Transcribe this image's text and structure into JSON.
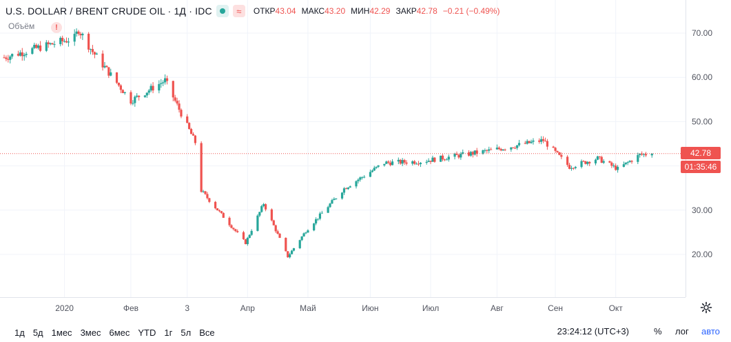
{
  "legend": {
    "symbol": "U.S. DOLLAR / BRENT CRUDE OIL · 1Д · IDC",
    "open_label": "ОТКР",
    "open": "43.04",
    "high_label": "МАКС",
    "high": "43.20",
    "low_label": "МИН",
    "low": "42.29",
    "close_label": "ЗАКР",
    "close": "42.78",
    "change": "−0.21 (−0.49%)",
    "status_icon": "dot-icon",
    "wave_icon": "≈"
  },
  "volume_label": "Объём",
  "alert_icon": "!",
  "price_tags": {
    "last": "42.78",
    "countdown": "01:35:46"
  },
  "colors": {
    "up": "#26a69a",
    "down": "#ef5350",
    "grid": "#f0f3fa",
    "axis_text": "#50535e"
  },
  "ranges": [
    "1д",
    "5д",
    "1мес",
    "3мес",
    "6мес",
    "YTD",
    "1г",
    "5л",
    "Все"
  ],
  "time_now": "23:24:12 (UTC+3)",
  "right_buttons": {
    "percent": "%",
    "log": "лог",
    "auto": "авто"
  },
  "settings_icon": "gear-icon",
  "chart_data": {
    "type": "candlestick",
    "title": "U.S. DOLLAR / BRENT CRUDE OIL · 1Д · IDC",
    "ylim": [
      10,
      76
    ],
    "y_ticks": [
      "70.00",
      "60.00",
      "50.00",
      "40.00",
      "30.00",
      "20.00"
    ],
    "y_tick_values": [
      70,
      60,
      50,
      40,
      30,
      20
    ],
    "x_ticks": [
      "2020",
      "Фев",
      "3",
      "Апр",
      "Май",
      "Июн",
      "Июл",
      "Авг",
      "Сен",
      "Окт"
    ],
    "last_price": 42.78,
    "grid": true,
    "key_points": [
      {
        "date": "2019-12-02",
        "close": 64.5
      },
      {
        "date": "2019-12-20",
        "close": 66.8
      },
      {
        "date": "2020-01-06",
        "close": 68.9
      },
      {
        "date": "2020-01-08",
        "close": 70.8
      },
      {
        "date": "2020-01-15",
        "close": 65.8
      },
      {
        "date": "2020-02-03",
        "close": 54.7
      },
      {
        "date": "2020-02-20",
        "close": 59.3
      },
      {
        "date": "2020-03-06",
        "close": 45.3
      },
      {
        "date": "2020-03-09",
        "close": 34.4
      },
      {
        "date": "2020-03-31",
        "close": 22.6
      },
      {
        "date": "2020-04-09",
        "close": 31.5
      },
      {
        "date": "2020-04-21",
        "close": 19.5
      },
      {
        "date": "2020-04-30",
        "close": 25.3
      },
      {
        "date": "2020-05-19",
        "close": 34.9
      },
      {
        "date": "2020-06-08",
        "close": 40.7
      },
      {
        "date": "2020-06-26",
        "close": 41.0
      },
      {
        "date": "2020-07-31",
        "close": 43.5
      },
      {
        "date": "2020-08-26",
        "close": 45.8
      },
      {
        "date": "2020-09-08",
        "close": 39.8
      },
      {
        "date": "2020-09-22",
        "close": 41.7
      },
      {
        "date": "2020-10-02",
        "close": 39.3
      },
      {
        "date": "2020-10-13",
        "close": 42.5
      },
      {
        "date": "2020-10-19",
        "close": 42.78
      }
    ]
  }
}
